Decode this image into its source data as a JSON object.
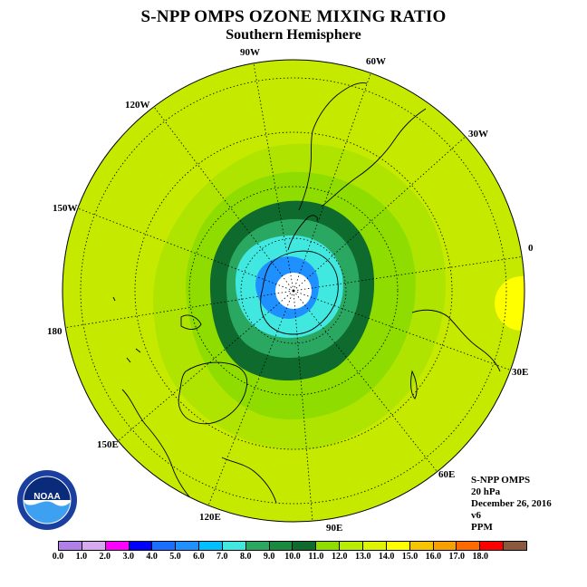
{
  "title": "S-NPP OMPS OZONE MIXING RATIO",
  "subtitle": "Southern Hemisphere",
  "meridian_labels": {
    "m90w": "90W",
    "m60w": "60W",
    "m30w": "30W",
    "m0": "0",
    "m30e": "30E",
    "m60e": "60E",
    "m90e": "90E",
    "m120e": "120E",
    "m150e": "150E",
    "m180": "180",
    "m150w": "150W",
    "m120w": "120W"
  },
  "info": {
    "instrument": "S-NPP OMPS",
    "level": "20 hPa",
    "date": "December 26, 2016",
    "version": "v6",
    "units": "PPM"
  },
  "logo_text": "NOAA",
  "colorbar": {
    "colors": [
      "#b07fe8",
      "#d7aaf0",
      "#ff00ff",
      "#0000ff",
      "#1a6fff",
      "#1e90ff",
      "#00bfff",
      "#40e8e0",
      "#2aa862",
      "#1a8a3e",
      "#0f6a2e",
      "#8fdc00",
      "#b8ec00",
      "#ddf500",
      "#ffff00",
      "#f7c400",
      "#f7a000",
      "#ff6a00",
      "#ff0000",
      "#8a5a3c"
    ],
    "ticks": [
      "0.0",
      "1.0",
      "2.0",
      "3.0",
      "4.0",
      "5.0",
      "6.0",
      "7.0",
      "8.0",
      "9.0",
      "10.0",
      "11.0",
      "12.0",
      "13.0",
      "14.0",
      "15.0",
      "16.0",
      "17.0",
      "18.0"
    ]
  },
  "field": {
    "background_value": "11.0-12.0",
    "polar_minimum": "below 6.0",
    "maximum_ring": "10.0-11.0"
  }
}
